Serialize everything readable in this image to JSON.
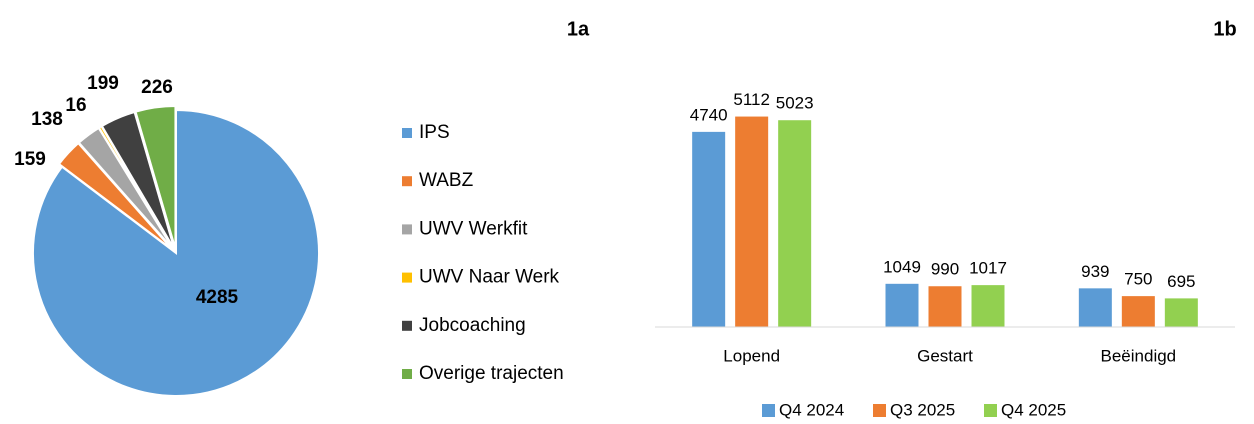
{
  "chart_data": [
    {
      "type": "pie",
      "title": "1a",
      "categories": [
        "IPS",
        "WABZ",
        "UWV Werkfit",
        "UWV Naar Werk",
        "Jobcoaching",
        "Overige trajecten"
      ],
      "values": [
        4285,
        159,
        138,
        16,
        199,
        226
      ],
      "colors": [
        "#5b9bd5",
        "#ed7d31",
        "#a5a5a5",
        "#ffc000",
        "#404040",
        "#70ad47"
      ],
      "legend": "right"
    },
    {
      "type": "bar",
      "title": "1b",
      "categories": [
        "Lopend",
        "Gestart",
        "Beëindigd"
      ],
      "series": [
        {
          "name": "Q4 2024",
          "color": "#5b9bd5",
          "values": [
            4740,
            1049,
            939
          ]
        },
        {
          "name": "Q3 2025",
          "color": "#ed7d31",
          "values": [
            5112,
            990,
            750
          ]
        },
        {
          "name": "Q4 2025",
          "color": "#92d050",
          "values": [
            5023,
            1017,
            695
          ]
        }
      ],
      "ylim": [
        0,
        6000
      ],
      "legend": "bottom"
    }
  ]
}
